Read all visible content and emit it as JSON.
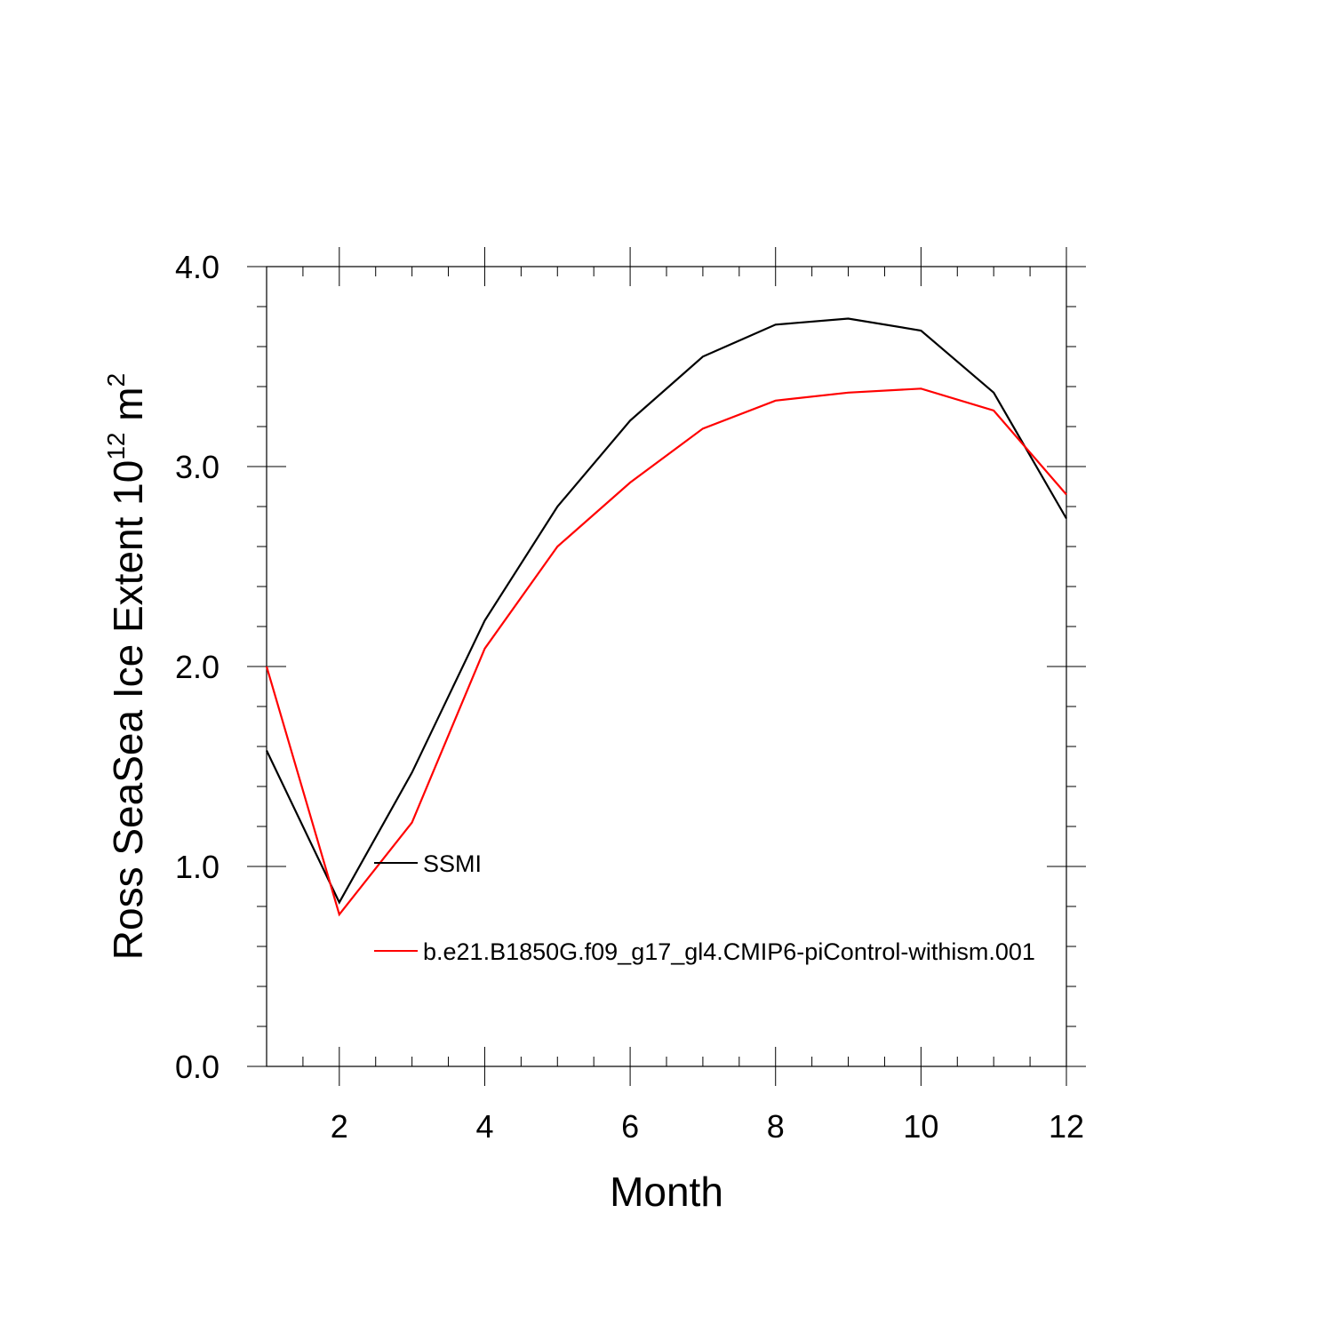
{
  "chart_data": {
    "type": "line",
    "xlabel": "Month",
    "ylabel_main": "Ross SeaSea Ice Extent 10",
    "ylabel_exp": "12",
    "ylabel_unit": "m",
    "ylabel_unit_exp": "2",
    "xlim": [
      1,
      12
    ],
    "ylim": [
      0.0,
      4.0
    ],
    "x_ticks": [
      2,
      4,
      6,
      8,
      10,
      12
    ],
    "y_ticks": [
      0.0,
      1.0,
      2.0,
      3.0,
      4.0
    ],
    "y_tick_labels": [
      "0.0",
      "1.0",
      "2.0",
      "3.0",
      "4.0"
    ],
    "x": [
      1,
      2,
      3,
      4,
      5,
      6,
      7,
      8,
      9,
      10,
      11,
      12
    ],
    "series": [
      {
        "name": "SSMI",
        "color": "#000000",
        "values": [
          1.58,
          0.82,
          1.47,
          2.23,
          2.8,
          3.23,
          3.55,
          3.71,
          3.74,
          3.68,
          3.37,
          2.74
        ]
      },
      {
        "name": "b.e21.B1850G.f09_g17_gl4.CMIP6-piControl-withism.001",
        "color": "#ff0000",
        "values": [
          2.0,
          0.76,
          1.22,
          2.09,
          2.6,
          2.92,
          3.19,
          3.33,
          3.37,
          3.39,
          3.28,
          2.86
        ]
      }
    ],
    "legend_position": "inside, lower-left",
    "grid": false
  }
}
